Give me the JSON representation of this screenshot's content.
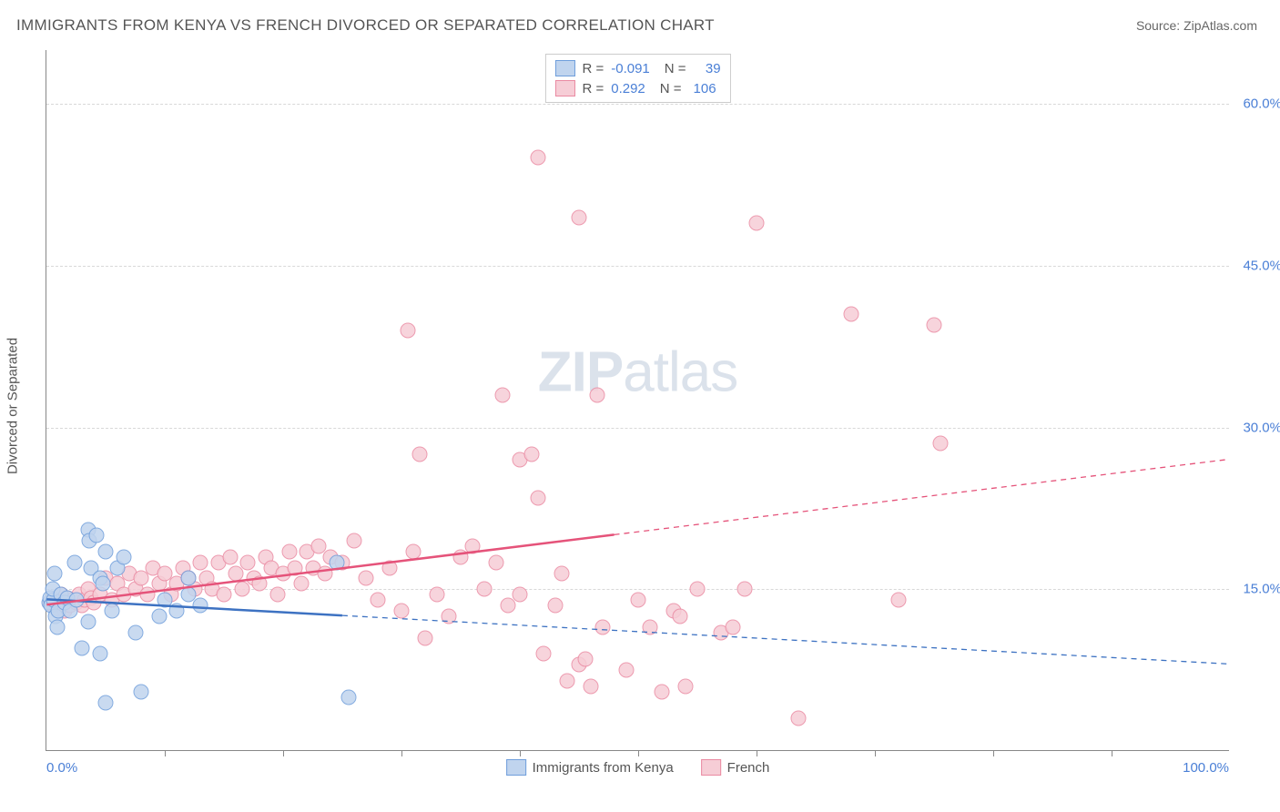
{
  "title": "IMMIGRANTS FROM KENYA VS FRENCH DIVORCED OR SEPARATED CORRELATION CHART",
  "source": "Source: ZipAtlas.com",
  "ylabel": "Divorced or Separated",
  "watermark_a": "ZIP",
  "watermark_b": "atlas",
  "chart": {
    "type": "scatter",
    "xlim": [
      0,
      100
    ],
    "ylim": [
      0,
      65
    ],
    "x_tick_positions": [
      10,
      20,
      30,
      40,
      50,
      60,
      70,
      80,
      90
    ],
    "x_axis_labels": {
      "left": "0.0%",
      "right": "100.0%"
    },
    "y_gridlines": [
      15,
      30,
      45,
      60
    ],
    "y_tick_labels": [
      "15.0%",
      "30.0%",
      "45.0%",
      "60.0%"
    ],
    "background_color": "#ffffff",
    "grid_color": "#d8d8d8",
    "axis_color": "#888888",
    "label_fontsize": 15,
    "title_fontsize": 17,
    "marker_radius": 8.5,
    "series": {
      "blue": {
        "label": "Immigrants from Kenya",
        "r": "-0.091",
        "n": "39",
        "fill": "#c0d4ee",
        "stroke": "#6f9edb",
        "line_color": "#3d72c2",
        "line_width": 2.5,
        "trend_solid": {
          "x1": 0,
          "y1": 14.0,
          "x2": 25,
          "y2": 12.5
        },
        "trend_dashed": {
          "x1": 25,
          "y1": 12.5,
          "x2": 100,
          "y2": 8.0
        },
        "points": [
          [
            0.2,
            13.8
          ],
          [
            0.3,
            14.2
          ],
          [
            0.4,
            13.5
          ],
          [
            0.6,
            14.0
          ],
          [
            0.8,
            12.5
          ],
          [
            0.5,
            15.0
          ],
          [
            1.0,
            13.0
          ],
          [
            1.2,
            14.5
          ],
          [
            1.5,
            13.8
          ],
          [
            0.9,
            11.5
          ],
          [
            1.8,
            14.2
          ],
          [
            2.0,
            13.0
          ],
          [
            2.5,
            14.0
          ],
          [
            2.4,
            17.5
          ],
          [
            3.5,
            20.5
          ],
          [
            3.6,
            19.5
          ],
          [
            3.8,
            17.0
          ],
          [
            4.2,
            20.0
          ],
          [
            4.5,
            16.0
          ],
          [
            5.0,
            18.5
          ],
          [
            4.8,
            15.5
          ],
          [
            5.5,
            13.0
          ],
          [
            6.0,
            17.0
          ],
          [
            6.5,
            18.0
          ],
          [
            3.0,
            9.5
          ],
          [
            3.5,
            12.0
          ],
          [
            4.5,
            9.0
          ],
          [
            5.0,
            4.5
          ],
          [
            8.0,
            5.5
          ],
          [
            7.5,
            11.0
          ],
          [
            9.5,
            12.5
          ],
          [
            10.0,
            14.0
          ],
          [
            11.0,
            13.0
          ],
          [
            12.0,
            14.5
          ],
          [
            12.0,
            16.0
          ],
          [
            13.0,
            13.5
          ],
          [
            24.5,
            17.5
          ],
          [
            25.5,
            5.0
          ],
          [
            0.7,
            16.5
          ]
        ]
      },
      "pink": {
        "label": "French",
        "r": "0.292",
        "n": "106",
        "fill": "#f6cdd6",
        "stroke": "#ea8aa2",
        "line_color": "#e5537a",
        "line_width": 2.5,
        "trend_solid": {
          "x1": 0,
          "y1": 13.5,
          "x2": 48,
          "y2": 20.0
        },
        "trend_dashed": {
          "x1": 48,
          "y1": 20.0,
          "x2": 100,
          "y2": 27.0
        },
        "points": [
          [
            0.3,
            13.8
          ],
          [
            0.5,
            13.5
          ],
          [
            0.7,
            14.0
          ],
          [
            1.0,
            13.2
          ],
          [
            1.2,
            14.5
          ],
          [
            1.5,
            13.0
          ],
          [
            1.8,
            14.2
          ],
          [
            2.0,
            13.5
          ],
          [
            2.2,
            14.0
          ],
          [
            2.5,
            13.8
          ],
          [
            2.8,
            14.5
          ],
          [
            3.0,
            13.5
          ],
          [
            3.2,
            14.0
          ],
          [
            3.5,
            15.0
          ],
          [
            3.8,
            14.2
          ],
          [
            4.0,
            13.8
          ],
          [
            4.5,
            14.5
          ],
          [
            5.0,
            16.0
          ],
          [
            5.5,
            14.0
          ],
          [
            6.0,
            15.5
          ],
          [
            6.5,
            14.5
          ],
          [
            7.0,
            16.5
          ],
          [
            7.5,
            15.0
          ],
          [
            8.0,
            16.0
          ],
          [
            8.5,
            14.5
          ],
          [
            9.0,
            17.0
          ],
          [
            9.5,
            15.5
          ],
          [
            10.0,
            16.5
          ],
          [
            10.5,
            14.5
          ],
          [
            11.0,
            15.5
          ],
          [
            11.5,
            17.0
          ],
          [
            12.0,
            16.0
          ],
          [
            12.5,
            15.0
          ],
          [
            13.0,
            17.5
          ],
          [
            13.5,
            16.0
          ],
          [
            14.0,
            15.0
          ],
          [
            14.5,
            17.5
          ],
          [
            15.0,
            14.5
          ],
          [
            15.5,
            18.0
          ],
          [
            16.0,
            16.5
          ],
          [
            16.5,
            15.0
          ],
          [
            17.0,
            17.5
          ],
          [
            17.5,
            16.0
          ],
          [
            18.0,
            15.5
          ],
          [
            18.5,
            18.0
          ],
          [
            19.0,
            17.0
          ],
          [
            19.5,
            14.5
          ],
          [
            20.0,
            16.5
          ],
          [
            20.5,
            18.5
          ],
          [
            21.0,
            17.0
          ],
          [
            21.5,
            15.5
          ],
          [
            22.0,
            18.5
          ],
          [
            22.5,
            17.0
          ],
          [
            23.0,
            19.0
          ],
          [
            23.5,
            16.5
          ],
          [
            24.0,
            18.0
          ],
          [
            25.0,
            17.5
          ],
          [
            26.0,
            19.5
          ],
          [
            27.0,
            16.0
          ],
          [
            28.0,
            14.0
          ],
          [
            29.0,
            17.0
          ],
          [
            30.0,
            13.0
          ],
          [
            31.0,
            18.5
          ],
          [
            32.0,
            10.5
          ],
          [
            33.0,
            14.5
          ],
          [
            34.0,
            12.5
          ],
          [
            30.5,
            39.0
          ],
          [
            31.5,
            27.5
          ],
          [
            35.0,
            18.0
          ],
          [
            36.0,
            19.0
          ],
          [
            37.0,
            15.0
          ],
          [
            38.0,
            17.5
          ],
          [
            39.0,
            13.5
          ],
          [
            40.0,
            14.5
          ],
          [
            38.5,
            33.0
          ],
          [
            41.5,
            55.0
          ],
          [
            40.0,
            27.0
          ],
          [
            41.0,
            27.5
          ],
          [
            42.0,
            9.0
          ],
          [
            41.5,
            23.5
          ],
          [
            43.0,
            13.5
          ],
          [
            44.0,
            6.5
          ],
          [
            45.0,
            8.0
          ],
          [
            45.5,
            8.5
          ],
          [
            43.5,
            16.5
          ],
          [
            46.0,
            6.0
          ],
          [
            47.0,
            11.5
          ],
          [
            45.0,
            49.5
          ],
          [
            46.5,
            33.0
          ],
          [
            49.0,
            7.5
          ],
          [
            50.0,
            14.0
          ],
          [
            51.0,
            11.5
          ],
          [
            52.0,
            5.5
          ],
          [
            53.0,
            13.0
          ],
          [
            53.5,
            12.5
          ],
          [
            54.0,
            6.0
          ],
          [
            55.0,
            15.0
          ],
          [
            57.0,
            11.0
          ],
          [
            58.0,
            11.5
          ],
          [
            59.0,
            15.0
          ],
          [
            60.0,
            49.0
          ],
          [
            63.5,
            3.0
          ],
          [
            68.0,
            40.5
          ],
          [
            72.0,
            14.0
          ],
          [
            75.0,
            39.5
          ],
          [
            75.5,
            28.5
          ]
        ]
      }
    }
  }
}
